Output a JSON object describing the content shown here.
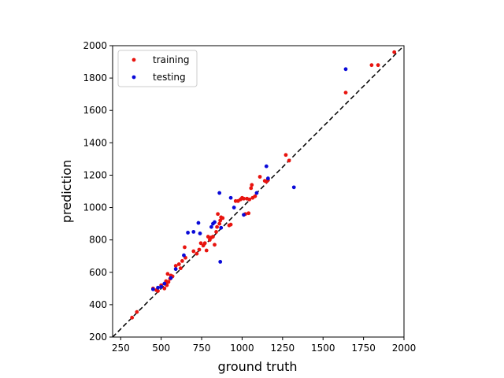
{
  "chart_data": {
    "type": "scatter",
    "title": "",
    "xlabel": "ground truth",
    "ylabel": "prediction",
    "xlim": [
      200,
      2000
    ],
    "ylim": [
      200,
      2000
    ],
    "xticks": [
      250,
      500,
      750,
      1000,
      1250,
      1500,
      1750,
      2000
    ],
    "yticks": [
      200,
      400,
      600,
      800,
      1000,
      1200,
      1400,
      1600,
      1800,
      2000
    ],
    "reference_line": {
      "style": "dashed",
      "color": "#000000",
      "from": [
        200,
        200
      ],
      "to": [
        2000,
        2000
      ]
    },
    "legend": {
      "position": "top-left"
    },
    "series": [
      {
        "name": "training",
        "color": "#e8140f",
        "points": [
          [
            320,
            320
          ],
          [
            350,
            355
          ],
          [
            450,
            500
          ],
          [
            470,
            490
          ],
          [
            480,
            485
          ],
          [
            500,
            520
          ],
          [
            520,
            500
          ],
          [
            525,
            530
          ],
          [
            530,
            545
          ],
          [
            535,
            520
          ],
          [
            540,
            590
          ],
          [
            545,
            540
          ],
          [
            555,
            560
          ],
          [
            560,
            580
          ],
          [
            570,
            575
          ],
          [
            590,
            640
          ],
          [
            610,
            650
          ],
          [
            620,
            625
          ],
          [
            630,
            670
          ],
          [
            645,
            755
          ],
          [
            650,
            690
          ],
          [
            700,
            730
          ],
          [
            720,
            715
          ],
          [
            735,
            740
          ],
          [
            745,
            780
          ],
          [
            760,
            765
          ],
          [
            770,
            780
          ],
          [
            780,
            735
          ],
          [
            790,
            820
          ],
          [
            800,
            800
          ],
          [
            810,
            815
          ],
          [
            820,
            820
          ],
          [
            830,
            770
          ],
          [
            840,
            850
          ],
          [
            845,
            880
          ],
          [
            850,
            960
          ],
          [
            860,
            900
          ],
          [
            865,
            920
          ],
          [
            870,
            940
          ],
          [
            880,
            935
          ],
          [
            920,
            890
          ],
          [
            930,
            895
          ],
          [
            960,
            1040
          ],
          [
            975,
            1040
          ],
          [
            990,
            1050
          ],
          [
            1000,
            1060
          ],
          [
            1010,
            1055
          ],
          [
            1020,
            960
          ],
          [
            1030,
            1055
          ],
          [
            1040,
            965
          ],
          [
            1045,
            1050
          ],
          [
            1055,
            1120
          ],
          [
            1060,
            1140
          ],
          [
            1065,
            1060
          ],
          [
            1080,
            1070
          ],
          [
            1110,
            1190
          ],
          [
            1140,
            1165
          ],
          [
            1150,
            1160
          ],
          [
            1160,
            1170
          ],
          [
            1270,
            1325
          ],
          [
            1290,
            1290
          ],
          [
            1640,
            1710
          ],
          [
            1800,
            1880
          ],
          [
            1840,
            1880
          ],
          [
            1940,
            1960
          ]
        ]
      },
      {
        "name": "testing",
        "color": "#0a0ad8",
        "points": [
          [
            450,
            495
          ],
          [
            480,
            505
          ],
          [
            500,
            510
          ],
          [
            520,
            530
          ],
          [
            560,
            565
          ],
          [
            590,
            620
          ],
          [
            640,
            705
          ],
          [
            665,
            845
          ],
          [
            700,
            850
          ],
          [
            730,
            905
          ],
          [
            740,
            840
          ],
          [
            810,
            880
          ],
          [
            820,
            900
          ],
          [
            830,
            910
          ],
          [
            860,
            1090
          ],
          [
            865,
            665
          ],
          [
            870,
            875
          ],
          [
            930,
            1060
          ],
          [
            950,
            1000
          ],
          [
            1010,
            955
          ],
          [
            1090,
            1090
          ],
          [
            1150,
            1255
          ],
          [
            1160,
            1180
          ],
          [
            1320,
            1125
          ],
          [
            1640,
            1855
          ]
        ]
      }
    ]
  }
}
